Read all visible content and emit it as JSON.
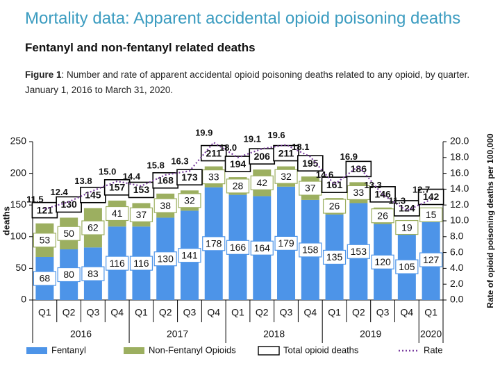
{
  "title": "Mortality data: Apparent accidental opioid poisoning deaths",
  "subtitle": "Fentanyl and non-fentanyl related deaths",
  "caption_label": "Figure 1",
  "caption": ": Number and rate of apparent accidental opioid poisoning deaths related to any opioid, by quarter. January 1, 2016 to March 31, 2020.",
  "chart_data": {
    "type": "bar",
    "stacked": true,
    "categories": [
      "Q1",
      "Q2",
      "Q3",
      "Q4",
      "Q1",
      "Q2",
      "Q3",
      "Q4",
      "Q1",
      "Q2",
      "Q3",
      "Q4",
      "Q1",
      "Q2",
      "Q3",
      "Q4",
      "Q1"
    ],
    "category_groups": [
      "2016",
      "2017",
      "2018",
      "2019",
      "2020"
    ],
    "ylabel": "deaths",
    "y2label": "Rate of opioid poisoning deaths per 100,000",
    "ylim": [
      0,
      250
    ],
    "yticks": [
      0,
      50,
      100,
      150,
      200,
      250
    ],
    "y2lim": [
      0,
      20
    ],
    "y2ticks": [
      {
        "value": 0,
        "label": "0.0"
      },
      {
        "value": 2,
        "label": "2.0"
      },
      {
        "value": 4,
        "label": "4.0"
      },
      {
        "value": 6,
        "label": "6.0"
      },
      {
        "value": 8,
        "label": "8.0"
      },
      {
        "value": 10,
        "label": "10.0"
      },
      {
        "value": 12,
        "label": "12.0"
      },
      {
        "value": 14,
        "label": "14.0"
      },
      {
        "value": 16,
        "label": "16.0"
      },
      {
        "value": 18,
        "label": "18.0"
      },
      {
        "value": 20,
        "label": "20.0"
      }
    ],
    "legend": "bottom",
    "series": [
      {
        "name": "Fentanyl",
        "type": "bar",
        "color": "#4d94e8",
        "values": [
          68,
          80,
          83,
          116,
          116,
          130,
          141,
          178,
          166,
          164,
          179,
          158,
          135,
          153,
          120,
          105,
          127
        ]
      },
      {
        "name": "Non-Fentanyl Opioids",
        "type": "bar",
        "color": "#9caf60",
        "values": [
          53,
          50,
          62,
          41,
          37,
          38,
          32,
          33,
          28,
          42,
          32,
          37,
          26,
          33,
          26,
          19,
          15
        ]
      },
      {
        "name": "Total opioid deaths",
        "type": "box",
        "color": "#000000",
        "values": [
          121,
          130,
          145,
          157,
          153,
          168,
          173,
          211,
          194,
          206,
          211,
          195,
          161,
          186,
          146,
          124,
          142
        ]
      },
      {
        "name": "Rate",
        "type": "line",
        "axis": "y2",
        "color": "#7b3fa0",
        "values": [
          11.5,
          12.4,
          13.8,
          15,
          14.4,
          15.8,
          16.3,
          19.9,
          18,
          19.1,
          19.6,
          18.1,
          14.6,
          16.9,
          13.3,
          11.3,
          12.7
        ],
        "value_labels": [
          "11.5",
          "12.4",
          "13.8",
          "15.0",
          "14.4",
          "15.8",
          "16.3",
          "19.9",
          "18.0",
          "19.1",
          "19.6",
          "18.1",
          "14.6",
          "16.9",
          "13.3",
          "11.3",
          "12.7"
        ]
      }
    ]
  }
}
